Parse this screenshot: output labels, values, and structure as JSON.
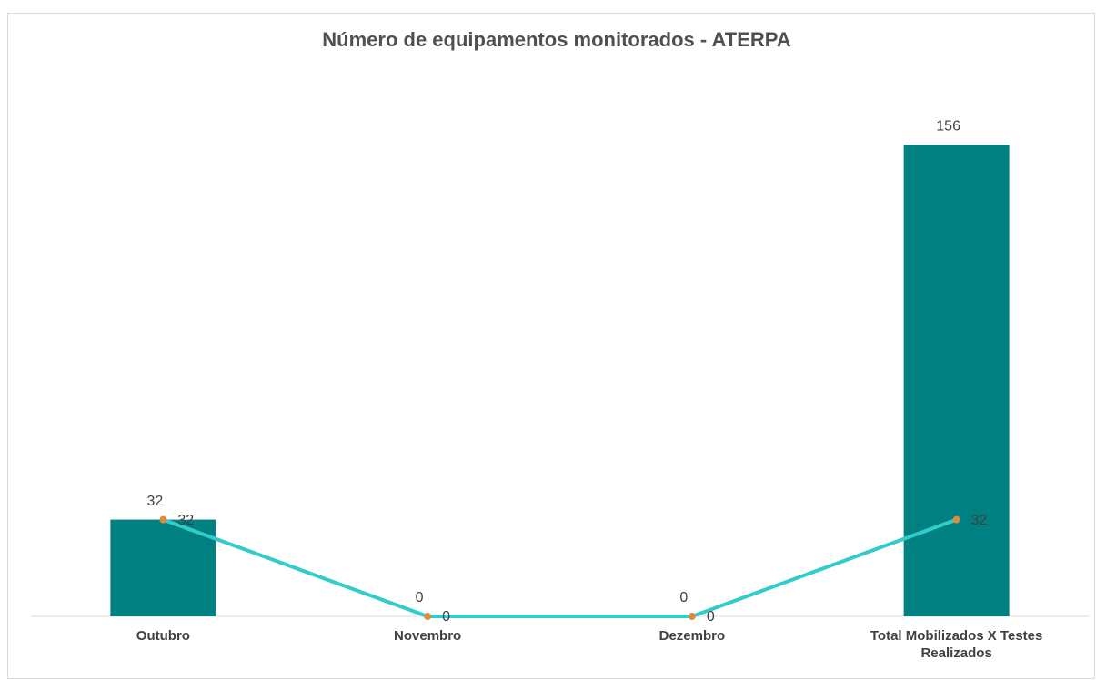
{
  "chart_data": {
    "type": "combo",
    "title": "Número de equipamentos monitorados - ATERPA",
    "categories": [
      "Outubro",
      "Novembro",
      "Dezembro",
      "Total Mobilizados X Testes Realizados"
    ],
    "series": [
      {
        "type": "bar",
        "color": "#008080",
        "values": [
          32,
          0,
          0,
          156
        ]
      },
      {
        "type": "line",
        "color": "#33cccc",
        "marker_color": "#e08a3c",
        "values": [
          32,
          0,
          0,
          32
        ]
      }
    ],
    "ylim": [
      0,
      160
    ]
  }
}
